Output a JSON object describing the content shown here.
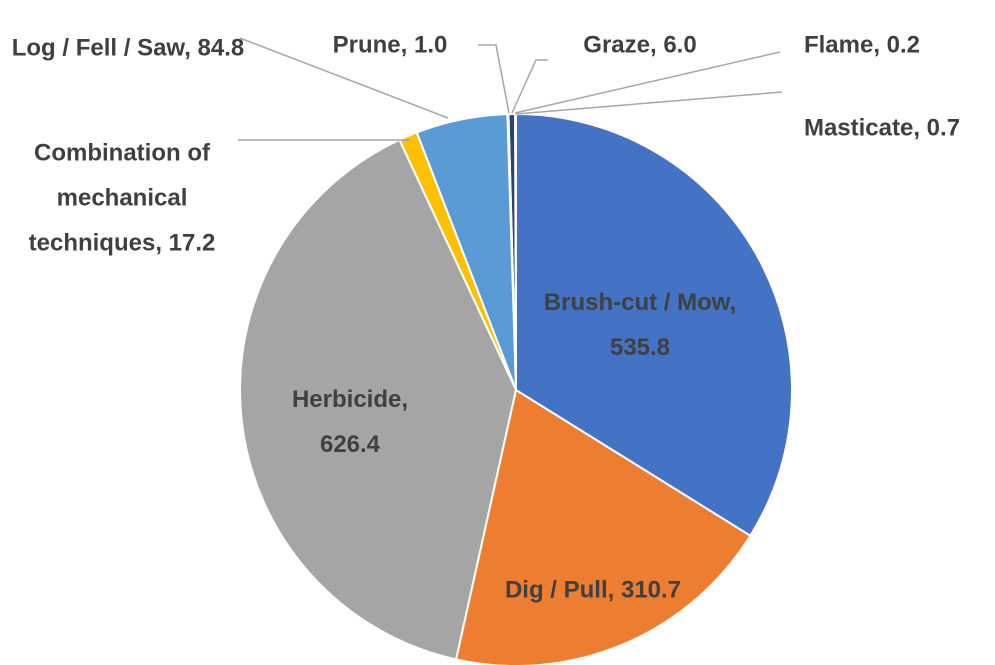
{
  "chart_data": {
    "type": "pie",
    "values": [
      535.8,
      310.7,
      626.4,
      17.2,
      84.8,
      1.0,
      6.0,
      0.2,
      0.7
    ],
    "value_labels": [
      "Brush-cut / Mow, 535.8",
      "Dig / Pull, 310.7",
      "Herbicide, 626.4",
      "Combination of mechanical techniques, 17.2",
      "Log / Fell / Saw, 84.8",
      "Prune, 1.0",
      "Graze, 6.0",
      "Flame, 0.2",
      "Masticate, 0.7"
    ],
    "colors": [
      "#4472c4",
      "#ed7d31",
      "#a5a5a5",
      "#ffc000",
      "#5b9bd5",
      "#70ad47",
      "#264478",
      "#9e480e",
      "#636363"
    ]
  }
}
